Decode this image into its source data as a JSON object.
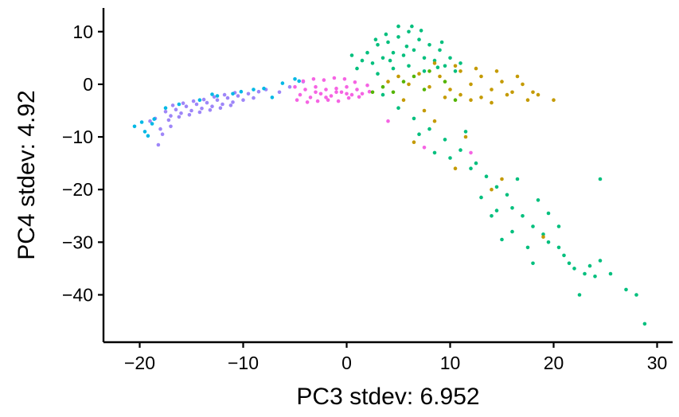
{
  "chart_data": {
    "type": "scatter",
    "title": "",
    "xlabel": "PC3 stdev:  6.952",
    "ylabel": "PC4 stdev:  4.92",
    "xlim": [
      -23.5,
      31.5
    ],
    "ylim": [
      -49,
      14.5
    ],
    "xticks": [
      -20,
      -10,
      0,
      10,
      20,
      30
    ],
    "xtick_labels": [
      "−20",
      "−10",
      "0",
      "10",
      "20",
      "30"
    ],
    "yticks": [
      10,
      0,
      -10,
      -20,
      -30,
      -40
    ],
    "ytick_labels": [
      "10",
      "0",
      "−10",
      "−20",
      "−30",
      "−40"
    ],
    "grid": false,
    "legend": "none",
    "series": [
      {
        "color": "#9E86F8",
        "points": [
          [
            -18.5,
            -6.5
          ],
          [
            -17.5,
            -5.2
          ],
          [
            -17.0,
            -6.0
          ],
          [
            -16.5,
            -4.8
          ],
          [
            -16.0,
            -5.5
          ],
          [
            -15.5,
            -4.2
          ],
          [
            -15.0,
            -5.0
          ],
          [
            -14.5,
            -3.8
          ],
          [
            -14.0,
            -4.6
          ],
          [
            -13.5,
            -3.5
          ],
          [
            -13.0,
            -4.2
          ],
          [
            -12.5,
            -3.0
          ],
          [
            -12.0,
            -3.8
          ],
          [
            -11.5,
            -2.6
          ],
          [
            -11.0,
            -3.4
          ],
          [
            -10.5,
            -2.2
          ],
          [
            -10.0,
            -3.0
          ],
          [
            -9.5,
            -1.8
          ],
          [
            -9.0,
            -2.6
          ],
          [
            -8.5,
            -1.4
          ],
          [
            -16.8,
            -4.0
          ],
          [
            -15.8,
            -3.6
          ],
          [
            -14.8,
            -3.2
          ],
          [
            -13.8,
            -2.9
          ],
          [
            -12.8,
            -2.4
          ],
          [
            -11.8,
            -2.0
          ],
          [
            -10.8,
            -1.6
          ],
          [
            -17.2,
            -6.8
          ],
          [
            -16.2,
            -6.2
          ],
          [
            -15.2,
            -5.8
          ],
          [
            -14.2,
            -5.3
          ],
          [
            -13.2,
            -4.9
          ],
          [
            -12.2,
            -4.5
          ],
          [
            -11.2,
            -4.0
          ],
          [
            -18.0,
            -8.5
          ],
          [
            -17.8,
            -9.5
          ],
          [
            -18.2,
            -11.5
          ],
          [
            -17.0,
            -8.0
          ],
          [
            -19.0,
            -7.0
          ],
          [
            -7.8,
            -1.0
          ],
          [
            -6.5,
            -1.5
          ],
          [
            -5.5,
            -0.5
          ],
          [
            -4.2,
            0.5
          ]
        ]
      },
      {
        "color": "#00B8E5",
        "points": [
          [
            -20.5,
            -8.0
          ],
          [
            -19.5,
            -9.0
          ],
          [
            -19.8,
            -7.2
          ],
          [
            -18.8,
            -7.5
          ],
          [
            -17.5,
            -4.5
          ],
          [
            -16.2,
            -3.8
          ],
          [
            -14.2,
            -3.0
          ],
          [
            -12.5,
            -2.2
          ],
          [
            -10.2,
            -1.4
          ],
          [
            -9.0,
            -1.0
          ],
          [
            -8.0,
            -0.8
          ],
          [
            -7.2,
            -2.5
          ],
          [
            -6.2,
            0.2
          ],
          [
            -5.0,
            1.0
          ],
          [
            -4.6,
            0.6
          ],
          [
            -19.2,
            -9.8
          ],
          [
            -18.6,
            -6.6
          ],
          [
            -13.0,
            -1.9
          ],
          [
            -11.0,
            -1.8
          ]
        ]
      },
      {
        "color": "#F564E3",
        "points": [
          [
            -5.0,
            -0.5
          ],
          [
            -4.5,
            -2.0
          ],
          [
            -4.0,
            -1.0
          ],
          [
            -3.5,
            -2.5
          ],
          [
            -3.0,
            -0.5
          ],
          [
            -2.5,
            -1.8
          ],
          [
            -2.0,
            -1.0
          ],
          [
            -1.5,
            -2.2
          ],
          [
            -1.0,
            -0.8
          ],
          [
            -0.5,
            -1.5
          ],
          [
            0.0,
            -0.5
          ],
          [
            0.5,
            -2.0
          ],
          [
            1.0,
            -1.0
          ],
          [
            1.5,
            -1.8
          ],
          [
            2.0,
            -0.2
          ],
          [
            -4.2,
            0.6
          ],
          [
            -3.2,
            1.0
          ],
          [
            -2.2,
            0.8
          ],
          [
            -1.2,
            1.2
          ],
          [
            -0.2,
            1.0
          ],
          [
            0.8,
            0.4
          ],
          [
            -4.8,
            -3.0
          ],
          [
            -3.8,
            -3.4
          ],
          [
            -2.8,
            -3.2
          ],
          [
            -1.8,
            -3.0
          ],
          [
            -0.8,
            -3.2
          ],
          [
            0.2,
            -2.6
          ],
          [
            1.2,
            -2.4
          ],
          [
            2.2,
            -1.4
          ],
          [
            -3.0,
            -1.5
          ],
          [
            -1.0,
            -1.5
          ],
          [
            -2.0,
            -2.5
          ],
          [
            0.0,
            -1.8
          ],
          [
            12.0,
            -13.0
          ],
          [
            7.5,
            -12.0
          ],
          [
            4.0,
            -7.0
          ]
        ]
      },
      {
        "color": "#00BF7D",
        "points": [
          [
            1.0,
            3.0
          ],
          [
            2.0,
            6.0
          ],
          [
            2.5,
            4.0
          ],
          [
            3.0,
            7.5
          ],
          [
            3.5,
            5.0
          ],
          [
            4.0,
            8.0
          ],
          [
            4.5,
            6.0
          ],
          [
            5.0,
            9.0
          ],
          [
            5.5,
            5.5
          ],
          [
            6.0,
            10.0
          ],
          [
            6.5,
            6.5
          ],
          [
            7.0,
            8.5
          ],
          [
            7.5,
            5.0
          ],
          [
            8.0,
            7.5
          ],
          [
            8.5,
            4.5
          ],
          [
            9.0,
            6.5
          ],
          [
            9.5,
            3.5
          ],
          [
            10.0,
            5.0
          ],
          [
            10.5,
            2.5
          ],
          [
            11.0,
            4.0
          ],
          [
            3.0,
            2.0
          ],
          [
            4.5,
            3.0
          ],
          [
            6.0,
            3.5
          ],
          [
            7.5,
            2.5
          ],
          [
            5.0,
            11.0
          ],
          [
            6.3,
            11.0
          ],
          [
            7.2,
            10.2
          ],
          [
            3.8,
            9.5
          ],
          [
            2.8,
            8.5
          ],
          [
            9.2,
            8.0
          ],
          [
            5.8,
            7.2
          ],
          [
            4.2,
            4.5
          ],
          [
            8.8,
            3.2
          ],
          [
            1.5,
            4.5
          ],
          [
            0.5,
            5.5
          ],
          [
            3.5,
            -2.0
          ],
          [
            5.0,
            -4.5
          ],
          [
            6.5,
            -6.5
          ],
          [
            8.0,
            -8.5
          ],
          [
            9.5,
            -10.5
          ],
          [
            11.0,
            -12.5
          ],
          [
            12.5,
            -15.0
          ],
          [
            13.5,
            -17.5
          ],
          [
            14.5,
            -19.5
          ],
          [
            15.5,
            -21.0
          ],
          [
            16.0,
            -23.5
          ],
          [
            17.0,
            -25.0
          ],
          [
            18.0,
            -27.0
          ],
          [
            19.0,
            -28.5
          ],
          [
            19.5,
            -30.0
          ],
          [
            20.5,
            -31.0
          ],
          [
            21.0,
            -32.5
          ],
          [
            21.5,
            -34.0
          ],
          [
            22.0,
            -35.0
          ],
          [
            23.0,
            -36.0
          ],
          [
            23.5,
            -34.5
          ],
          [
            24.0,
            -36.5
          ],
          [
            24.5,
            -33.5
          ],
          [
            25.5,
            -36.0
          ],
          [
            22.5,
            -40.0
          ],
          [
            27.0,
            -39.0
          ],
          [
            28.0,
            -40.0
          ],
          [
            28.8,
            -45.5
          ],
          [
            24.5,
            -18.0
          ],
          [
            18.5,
            -22.0
          ],
          [
            17.5,
            -31.0
          ],
          [
            15.0,
            -29.5
          ],
          [
            14.0,
            -25.0
          ],
          [
            13.0,
            -21.5
          ],
          [
            12.0,
            -16.0
          ],
          [
            10.0,
            -14.0
          ],
          [
            8.5,
            -13.0
          ],
          [
            7.0,
            -9.5
          ],
          [
            16.5,
            -18.0
          ],
          [
            19.5,
            -24.5
          ],
          [
            20.5,
            -27.0
          ],
          [
            14.5,
            -24.0
          ],
          [
            18.0,
            -34.0
          ],
          [
            16.0,
            -28.0
          ],
          [
            11.5,
            -9.0
          ]
        ]
      },
      {
        "color": "#C49A00",
        "points": [
          [
            4.0,
            0.5
          ],
          [
            5.0,
            1.5
          ],
          [
            6.0,
            0.0
          ],
          [
            7.0,
            2.0
          ],
          [
            8.0,
            -0.5
          ],
          [
            9.0,
            1.5
          ],
          [
            10.0,
            -1.0
          ],
          [
            11.0,
            2.5
          ],
          [
            12.0,
            0.0
          ],
          [
            13.0,
            1.5
          ],
          [
            14.0,
            -1.0
          ],
          [
            15.0,
            0.5
          ],
          [
            16.0,
            -1.5
          ],
          [
            17.0,
            0.0
          ],
          [
            18.0,
            -1.5
          ],
          [
            8.5,
            4.0
          ],
          [
            10.5,
            3.5
          ],
          [
            12.5,
            3.0
          ],
          [
            14.5,
            2.5
          ],
          [
            16.5,
            1.5
          ],
          [
            12.0,
            -3.0
          ],
          [
            14.0,
            -3.5
          ],
          [
            13.0,
            -2.5
          ],
          [
            11.0,
            -2.0
          ],
          [
            9.5,
            -2.5
          ],
          [
            15.5,
            -2.0
          ],
          [
            17.5,
            -3.0
          ],
          [
            18.5,
            -2.0
          ],
          [
            20.0,
            -3.0
          ],
          [
            5.5,
            -3.0
          ],
          [
            7.5,
            -5.0
          ],
          [
            8.5,
            -7.0
          ],
          [
            11.5,
            -10.0
          ],
          [
            10.5,
            -16.0
          ],
          [
            14.0,
            -20.0
          ],
          [
            15.0,
            -18.0
          ],
          [
            19.0,
            -29.0
          ],
          [
            6.5,
            -11.0
          ]
        ]
      },
      {
        "color": "#53B400",
        "points": [
          [
            3.5,
            -0.5
          ],
          [
            5.5,
            0.5
          ],
          [
            7.5,
            -1.0
          ],
          [
            9.5,
            0.5
          ],
          [
            6.5,
            1.5
          ],
          [
            4.5,
            -1.5
          ],
          [
            8.0,
            2.5
          ],
          [
            2.5,
            -1.5
          ],
          [
            10.5,
            -3.0
          ]
        ]
      }
    ]
  }
}
